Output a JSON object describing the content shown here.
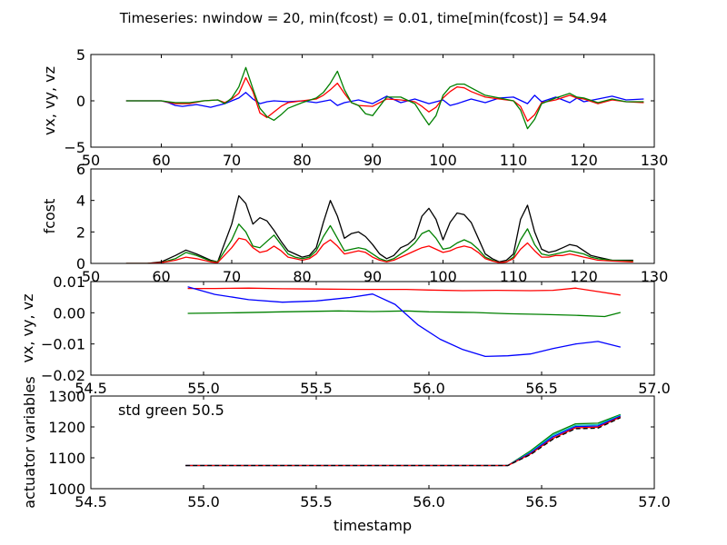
{
  "title": "Timeseries: nwindow = 20, min(fcost) = 0.01, time[min(fcost)] = 54.94",
  "chart_data": [
    {
      "type": "line",
      "ylabel": "vx, vy, vz",
      "xlim": [
        50,
        130
      ],
      "ylim": [
        -5,
        5
      ],
      "xticks": [
        "50",
        "60",
        "70",
        "80",
        "90",
        "100",
        "110",
        "120",
        "130"
      ],
      "yticks": [
        "5",
        "0",
        "−5"
      ],
      "series": [
        {
          "color": "#0000ff",
          "x": [
            55,
            60,
            61,
            62,
            63,
            65,
            67,
            69,
            70,
            71,
            72,
            73,
            74,
            75,
            76,
            78,
            80,
            82,
            84,
            85,
            86,
            88,
            90,
            92,
            94,
            96,
            98,
            100,
            101,
            102,
            104,
            106,
            108,
            110,
            112,
            113,
            114,
            116,
            118,
            119,
            120,
            122,
            124,
            126,
            128.5
          ],
          "y": [
            0,
            0,
            -0.2,
            -0.5,
            -0.6,
            -0.4,
            -0.7,
            -0.3,
            0,
            0.3,
            0.9,
            0.2,
            -0.3,
            -0.1,
            0,
            -0.1,
            0,
            -0.2,
            0.1,
            -0.5,
            -0.2,
            0.1,
            -0.3,
            0.5,
            -0.2,
            0.2,
            -0.3,
            0.1,
            -0.5,
            -0.3,
            0.2,
            -0.2,
            0.3,
            0.4,
            -0.3,
            0.6,
            -0.1,
            0.4,
            -0.2,
            0.3,
            -0.1,
            0.2,
            0.5,
            0.1,
            0.2
          ]
        },
        {
          "color": "#ff0000",
          "x": [
            55,
            60,
            62,
            64,
            66,
            68,
            69,
            70,
            71,
            72,
            73,
            74,
            75,
            76,
            77,
            78,
            80,
            82,
            83,
            84,
            85,
            86,
            87,
            88,
            90,
            92,
            94,
            96,
            97,
            98,
            99,
            100,
            101,
            102,
            103,
            104,
            106,
            108,
            110,
            111,
            112,
            113,
            114,
            116,
            118,
            119,
            120,
            122,
            124,
            126,
            128.5
          ],
          "y": [
            0,
            0,
            -0.3,
            -0.3,
            0,
            0.1,
            -0.2,
            0.2,
            0.8,
            2.5,
            1.0,
            -1.3,
            -1.8,
            -1.2,
            -0.6,
            -0.2,
            0,
            0.2,
            0.6,
            1.2,
            1.9,
            0.8,
            -0.2,
            -0.5,
            -0.6,
            0.2,
            0.1,
            -0.1,
            -0.6,
            -1.2,
            -0.7,
            0.3,
            1.0,
            1.5,
            1.4,
            1.0,
            0.4,
            0.2,
            0,
            -0.6,
            -2.2,
            -1.5,
            -0.2,
            0.1,
            0.6,
            0.3,
            0.2,
            -0.3,
            0.1,
            -0.1,
            -0.2
          ]
        },
        {
          "color": "#008000",
          "x": [
            55,
            60,
            62,
            64,
            66,
            68,
            69,
            70,
            71,
            72,
            73,
            74,
            75,
            76,
            77,
            78,
            80,
            82,
            83,
            84,
            85,
            86,
            87,
            88,
            89,
            90,
            92,
            94,
            96,
            97,
            98,
            99,
            100,
            101,
            102,
            103,
            104,
            106,
            108,
            110,
            111,
            112,
            113,
            114,
            116,
            118,
            119,
            120,
            122,
            124,
            126,
            128.5
          ],
          "y": [
            0,
            0,
            -0.2,
            -0.2,
            0,
            0.1,
            -0.3,
            0.3,
            1.5,
            3.6,
            1.3,
            -0.8,
            -1.7,
            -2.1,
            -1.5,
            -0.8,
            -0.2,
            0.3,
            0.9,
            1.9,
            3.2,
            1.2,
            -0.2,
            -0.5,
            -1.4,
            -1.6,
            0.4,
            0.4,
            -0.3,
            -1.5,
            -2.6,
            -1.6,
            0.6,
            1.5,
            1.8,
            1.8,
            1.4,
            0.6,
            0.3,
            0,
            -1.0,
            -3.0,
            -2.0,
            -0.3,
            0.3,
            0.8,
            0.4,
            0.3,
            -0.2,
            0.2,
            -0.1,
            -0.1
          ]
        }
      ]
    },
    {
      "type": "line",
      "ylabel": "fcost",
      "xlim": [
        50,
        130
      ],
      "ylim": [
        0,
        6
      ],
      "xticks": [
        "50",
        "60",
        "70",
        "80",
        "90",
        "100",
        "110",
        "120",
        "130"
      ],
      "yticks": [
        "6",
        "4",
        "2",
        "0"
      ],
      "series": [
        {
          "color": "#000000",
          "x": [
            55,
            58,
            60,
            62,
            63.5,
            65,
            67,
            68,
            70,
            71,
            72,
            73,
            74,
            75,
            76,
            77,
            78,
            79,
            80,
            81,
            82,
            83,
            84,
            85,
            86,
            87,
            88,
            89,
            90,
            91,
            92,
            93,
            94,
            95,
            96,
            97,
            98,
            99,
            100,
            101,
            102,
            103,
            104,
            105,
            106,
            107,
            108,
            109,
            110,
            111,
            112,
            113,
            114,
            115,
            116,
            117,
            118,
            119,
            120,
            121,
            122,
            124,
            127
          ],
          "y": [
            0,
            0,
            0.1,
            0.5,
            0.85,
            0.6,
            0.2,
            0.1,
            2.5,
            4.3,
            3.8,
            2.5,
            2.9,
            2.7,
            2.1,
            1.4,
            0.8,
            0.6,
            0.4,
            0.5,
            1.0,
            2.6,
            4.0,
            3.0,
            1.6,
            1.9,
            2.0,
            1.7,
            1.2,
            0.6,
            0.3,
            0.5,
            1.0,
            1.2,
            1.6,
            3.0,
            3.5,
            2.8,
            1.5,
            2.6,
            3.2,
            3.1,
            2.6,
            1.6,
            0.6,
            0.3,
            0.1,
            0.2,
            0.6,
            2.8,
            3.7,
            2.0,
            0.9,
            0.7,
            0.8,
            1.0,
            1.2,
            1.1,
            0.8,
            0.5,
            0.4,
            0.2,
            0.2
          ]
        },
        {
          "color": "#008000",
          "x": [
            55,
            58,
            60,
            62,
            63.5,
            65,
            67,
            68,
            70,
            71,
            72,
            73,
            74,
            75,
            76,
            77,
            78,
            79,
            80,
            81,
            82,
            83,
            84,
            85,
            86,
            87,
            88,
            89,
            90,
            91,
            92,
            93,
            94,
            95,
            96,
            97,
            98,
            99,
            100,
            101,
            102,
            103,
            104,
            105,
            106,
            107,
            108,
            109,
            110,
            111,
            112,
            113,
            114,
            115,
            116,
            117,
            118,
            119,
            120,
            121,
            122,
            124,
            127
          ],
          "y": [
            0,
            0,
            0.05,
            0.3,
            0.7,
            0.5,
            0.15,
            0.1,
            1.5,
            2.5,
            2.0,
            1.1,
            1.0,
            1.4,
            1.8,
            1.2,
            0.6,
            0.4,
            0.3,
            0.4,
            0.8,
            1.7,
            2.4,
            1.6,
            0.8,
            0.9,
            1.0,
            0.9,
            0.6,
            0.3,
            0.15,
            0.3,
            0.6,
            0.9,
            1.3,
            1.9,
            2.1,
            1.6,
            0.9,
            1.0,
            1.3,
            1.5,
            1.3,
            0.9,
            0.4,
            0.2,
            0.05,
            0.1,
            0.4,
            1.5,
            2.2,
            1.2,
            0.6,
            0.5,
            0.6,
            0.7,
            0.8,
            0.7,
            0.6,
            0.4,
            0.3,
            0.2,
            0.15
          ]
        },
        {
          "color": "#ff0000",
          "x": [
            55,
            58,
            60,
            62,
            63.5,
            65,
            67,
            68,
            70,
            71,
            72,
            73,
            74,
            75,
            76,
            77,
            78,
            79,
            80,
            81,
            82,
            83,
            84,
            85,
            86,
            87,
            88,
            89,
            90,
            91,
            92,
            93,
            94,
            95,
            96,
            97,
            98,
            99,
            100,
            101,
            102,
            103,
            104,
            105,
            106,
            107,
            108,
            109,
            110,
            111,
            112,
            113,
            114,
            115,
            116,
            117,
            118,
            119,
            120,
            121,
            122,
            124,
            127
          ],
          "y": [
            0,
            0,
            0.05,
            0.2,
            0.4,
            0.3,
            0.1,
            0.05,
            1.0,
            1.6,
            1.5,
            1.0,
            0.7,
            0.8,
            1.1,
            0.8,
            0.4,
            0.3,
            0.2,
            0.3,
            0.6,
            1.2,
            1.5,
            1.1,
            0.6,
            0.7,
            0.8,
            0.7,
            0.4,
            0.2,
            0.1,
            0.2,
            0.4,
            0.6,
            0.8,
            1.0,
            1.1,
            0.9,
            0.7,
            0.8,
            1.0,
            1.1,
            1.0,
            0.7,
            0.3,
            0.15,
            0.05,
            0.1,
            0.3,
            0.9,
            1.3,
            0.8,
            0.4,
            0.4,
            0.5,
            0.5,
            0.6,
            0.5,
            0.4,
            0.3,
            0.2,
            0.15,
            0.1
          ]
        }
      ]
    },
    {
      "type": "line",
      "ylabel": "vx, vy, vz",
      "xlim": [
        54.5,
        57.0
      ],
      "ylim": [
        -0.02,
        0.01
      ],
      "xticks": [
        "54.5",
        "55.0",
        "55.5",
        "56.0",
        "56.5",
        "57.0"
      ],
      "yticks": [
        "0.01",
        "0.00",
        "−0.01",
        "−0.02"
      ],
      "series": [
        {
          "color": "#ff0000",
          "x": [
            54.93,
            55.05,
            55.2,
            55.35,
            55.5,
            55.7,
            55.9,
            56.0,
            56.15,
            56.3,
            56.45,
            56.55,
            56.65,
            56.75,
            56.85
          ],
          "y": [
            0.0078,
            0.0078,
            0.0079,
            0.0077,
            0.0076,
            0.0075,
            0.0075,
            0.0073,
            0.0071,
            0.0072,
            0.0071,
            0.0072,
            0.0079,
            0.0068,
            0.0057
          ]
        },
        {
          "color": "#008000",
          "x": [
            54.93,
            55.15,
            55.35,
            55.6,
            55.75,
            55.9,
            56.0,
            56.2,
            56.35,
            56.5,
            56.65,
            56.78,
            56.85
          ],
          "y": [
            -0.0002,
            0.0,
            0.0003,
            0.0006,
            0.0004,
            0.0006,
            0.0003,
            0.0001,
            -0.0003,
            -0.0005,
            -0.0008,
            -0.0012,
            0.0001
          ]
        },
        {
          "color": "#0000ff",
          "x": [
            54.93,
            55.05,
            55.2,
            55.35,
            55.5,
            55.65,
            55.75,
            55.85,
            55.95,
            56.05,
            56.15,
            56.25,
            56.35,
            56.45,
            56.55,
            56.65,
            56.75,
            56.85
          ],
          "y": [
            0.0083,
            0.0059,
            0.0042,
            0.0034,
            0.0038,
            0.0049,
            0.006,
            0.0027,
            -0.0038,
            -0.0085,
            -0.0118,
            -0.014,
            -0.0138,
            -0.0132,
            -0.0115,
            -0.01,
            -0.0092,
            -0.011
          ]
        }
      ]
    },
    {
      "type": "line",
      "ylabel": "actuator variables",
      "xlabel": "timestamp",
      "annotation": "std green 50.5",
      "xlim": [
        54.5,
        57.0
      ],
      "ylim": [
        1000,
        1300
      ],
      "xticks": [
        "54.5",
        "55.0",
        "55.5",
        "56.0",
        "56.5",
        "57.0"
      ],
      "yticks": [
        "1300",
        "1200",
        "1100",
        "1000"
      ],
      "series": [
        {
          "color": "#008000",
          "dash": false,
          "x": [
            54.92,
            56.35,
            56.45,
            56.55,
            56.65,
            56.75,
            56.85
          ],
          "y": [
            1075,
            1075,
            1122,
            1178,
            1210,
            1212,
            1240
          ]
        },
        {
          "color": "#00bfbf",
          "dash": false,
          "x": [
            54.92,
            56.35,
            56.45,
            56.55,
            56.65,
            56.75,
            56.85
          ],
          "y": [
            1075,
            1075,
            1118,
            1173,
            1205,
            1207,
            1238
          ]
        },
        {
          "color": "#0000ff",
          "dash": false,
          "x": [
            54.92,
            56.35,
            56.45,
            56.55,
            56.65,
            56.75,
            56.85
          ],
          "y": [
            1075,
            1075,
            1115,
            1168,
            1201,
            1203,
            1235
          ]
        },
        {
          "color": "#ff0000",
          "dash": false,
          "x": [
            54.92,
            56.35,
            56.45,
            56.55,
            56.65,
            56.75,
            56.85
          ],
          "y": [
            1075,
            1075,
            1112,
            1163,
            1197,
            1199,
            1232
          ]
        },
        {
          "color": "#000000",
          "dash": true,
          "x": [
            54.92,
            56.35,
            56.45,
            56.55,
            56.65,
            56.75,
            56.85
          ],
          "y": [
            1075,
            1075,
            1110,
            1160,
            1194,
            1196,
            1230
          ]
        }
      ]
    }
  ]
}
